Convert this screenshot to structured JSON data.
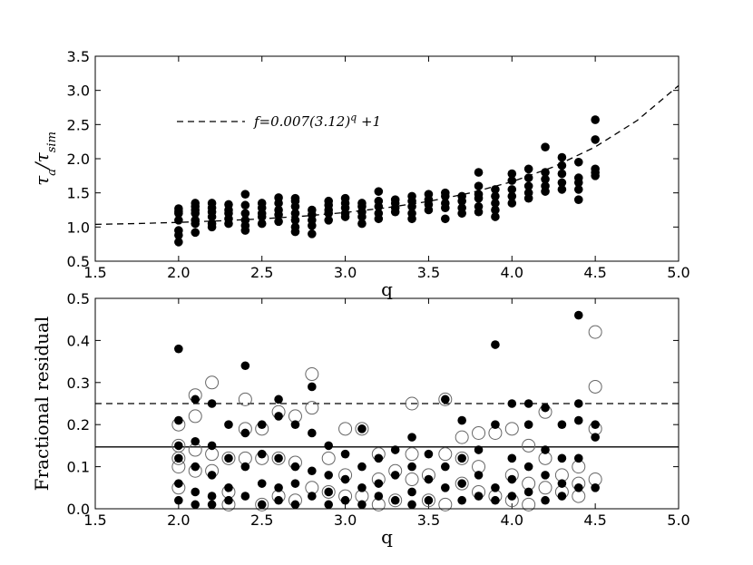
{
  "chart_data": [
    {
      "type": "scatter",
      "xlabel": "q",
      "ylabel_parts": [
        "τ",
        "a",
        "/τ",
        "sim"
      ],
      "xlim": [
        1.5,
        5.0
      ],
      "ylim": [
        0.5,
        3.5
      ],
      "xticks": [
        1.5,
        {
          "value": 2,
          "label": "2.0"
        },
        2.5,
        {
          "value": 3,
          "label": "3.0"
        },
        3.5,
        {
          "value": 4,
          "label": "4.0"
        },
        4.5,
        {
          "value": 5,
          "label": "5.0"
        }
      ],
      "yticks": [
        0.5,
        {
          "value": 1,
          "label": "1.0"
        },
        1.5,
        {
          "value": 2,
          "label": "2.0"
        },
        2.5,
        {
          "value": 3,
          "label": "3.0"
        },
        3.5
      ],
      "legend": "upper left",
      "series": [
        {
          "type": "scatter",
          "color": "#000000",
          "filled": true,
          "x": [
            2.0,
            2.0,
            2.0,
            2.0,
            2.0,
            2.0,
            2.0,
            2.1,
            2.1,
            2.1,
            2.1,
            2.1,
            2.1,
            2.1,
            2.2,
            2.2,
            2.2,
            2.2,
            2.2,
            2.2,
            2.3,
            2.3,
            2.3,
            2.3,
            2.3,
            2.4,
            2.4,
            2.4,
            2.4,
            2.4,
            2.4,
            2.5,
            2.5,
            2.5,
            2.5,
            2.5,
            2.6,
            2.6,
            2.6,
            2.6,
            2.6,
            2.7,
            2.7,
            2.7,
            2.7,
            2.7,
            2.7,
            2.7,
            2.8,
            2.8,
            2.8,
            2.8,
            2.8,
            2.9,
            2.9,
            2.9,
            2.9,
            2.9,
            3.0,
            3.0,
            3.0,
            3.0,
            3.0,
            3.1,
            3.1,
            3.1,
            3.1,
            3.1,
            3.2,
            3.2,
            3.2,
            3.2,
            3.2,
            3.3,
            3.3,
            3.3,
            3.3,
            3.4,
            3.4,
            3.4,
            3.4,
            3.4,
            3.5,
            3.5,
            3.5,
            3.5,
            3.6,
            3.6,
            3.6,
            3.6,
            3.6,
            3.7,
            3.7,
            3.7,
            3.7,
            3.8,
            3.8,
            3.8,
            3.8,
            3.8,
            3.8,
            3.9,
            3.9,
            3.9,
            3.9,
            3.9,
            4.0,
            4.0,
            4.0,
            4.0,
            4.0,
            4.1,
            4.1,
            4.1,
            4.1,
            4.1,
            4.2,
            4.2,
            4.2,
            4.2,
            4.2,
            4.3,
            4.3,
            4.3,
            4.3,
            4.3,
            4.4,
            4.4,
            4.4,
            4.4,
            4.4,
            4.5,
            4.5,
            4.5,
            4.5,
            4.5
          ],
          "values": [
            1.27,
            1.23,
            1.2,
            1.1,
            0.95,
            0.88,
            0.78,
            1.35,
            1.3,
            1.25,
            1.2,
            1.1,
            1.05,
            0.92,
            1.35,
            1.28,
            1.22,
            1.15,
            1.05,
            1.0,
            1.33,
            1.25,
            1.2,
            1.12,
            1.05,
            1.48,
            1.32,
            1.2,
            1.1,
            1.02,
            0.95,
            1.35,
            1.28,
            1.2,
            1.15,
            1.05,
            1.43,
            1.35,
            1.25,
            1.18,
            1.08,
            1.42,
            1.38,
            1.3,
            1.2,
            1.1,
            1.0,
            0.93,
            1.25,
            1.18,
            1.1,
            1.02,
            0.9,
            1.38,
            1.32,
            1.25,
            1.2,
            1.1,
            1.42,
            1.35,
            1.28,
            1.2,
            1.15,
            1.35,
            1.3,
            1.22,
            1.15,
            1.05,
            1.52,
            1.38,
            1.3,
            1.2,
            1.12,
            1.4,
            1.35,
            1.28,
            1.22,
            1.45,
            1.38,
            1.3,
            1.2,
            1.12,
            1.48,
            1.4,
            1.33,
            1.25,
            1.5,
            1.45,
            1.35,
            1.28,
            1.12,
            1.45,
            1.38,
            1.28,
            1.2,
            1.8,
            1.6,
            1.48,
            1.42,
            1.3,
            1.22,
            1.55,
            1.45,
            1.35,
            1.25,
            1.15,
            1.78,
            1.68,
            1.55,
            1.45,
            1.35,
            1.85,
            1.72,
            1.6,
            1.5,
            1.42,
            2.17,
            1.8,
            1.7,
            1.6,
            1.52,
            2.02,
            1.9,
            1.78,
            1.65,
            1.55,
            1.95,
            1.72,
            1.65,
            1.55,
            1.4,
            2.57,
            2.28,
            1.85,
            1.8,
            1.75
          ]
        },
        {
          "type": "line",
          "color": "#000000",
          "dashed": true,
          "legend_parts": [
            "f=0.007(3.12)",
            "q",
            " +1"
          ],
          "x": [
            1.5,
            1.75,
            2.0,
            2.25,
            2.5,
            2.75,
            3.0,
            3.25,
            3.5,
            3.75,
            4.0,
            4.25,
            4.5,
            4.75,
            5.0
          ],
          "values": [
            1.039,
            1.051,
            1.068,
            1.091,
            1.12,
            1.16,
            1.213,
            1.283,
            1.375,
            1.499,
            1.663,
            1.881,
            2.172,
            2.557,
            3.07
          ]
        }
      ]
    },
    {
      "type": "scatter",
      "xlabel": "q",
      "ylabel": "Fractional residual",
      "xlim": [
        1.5,
        5.0
      ],
      "ylim": [
        0.0,
        0.5
      ],
      "xticks": [
        1.5,
        {
          "value": 2,
          "label": "2.0"
        },
        2.5,
        {
          "value": 3,
          "label": "3.0"
        },
        3.5,
        {
          "value": 4,
          "label": "4.0"
        },
        4.5,
        {
          "value": 5,
          "label": "5.0"
        }
      ],
      "yticks": [
        {
          "value": 0,
          "label": "0.0"
        },
        0.1,
        0.2,
        0.3,
        0.4,
        0.5
      ],
      "hlines": [
        {
          "value": 0.25,
          "dashed": true
        },
        {
          "value": 0.147,
          "dashed": false
        }
      ],
      "series": [
        {
          "type": "scatter",
          "color": "#666666",
          "filled": false,
          "x": [
            2.0,
            2.0,
            2.0,
            2.0,
            2.0,
            2.1,
            2.1,
            2.1,
            2.1,
            2.2,
            2.2,
            2.2,
            2.3,
            2.3,
            2.3,
            2.4,
            2.4,
            2.4,
            2.5,
            2.5,
            2.5,
            2.6,
            2.6,
            2.6,
            2.7,
            2.7,
            2.7,
            2.8,
            2.8,
            2.8,
            2.9,
            2.9,
            3.0,
            3.0,
            3.0,
            3.1,
            3.1,
            3.2,
            3.2,
            3.2,
            3.3,
            3.3,
            3.4,
            3.4,
            3.4,
            3.5,
            3.5,
            3.6,
            3.6,
            3.6,
            3.7,
            3.7,
            3.7,
            3.8,
            3.8,
            3.8,
            3.9,
            3.9,
            4.0,
            4.0,
            4.0,
            4.1,
            4.1,
            4.1,
            4.2,
            4.2,
            4.2,
            4.3,
            4.3,
            4.4,
            4.4,
            4.4,
            4.5,
            4.5,
            4.5,
            4.5
          ],
          "values": [
            0.2,
            0.15,
            0.12,
            0.1,
            0.05,
            0.27,
            0.22,
            0.14,
            0.09,
            0.3,
            0.13,
            0.09,
            0.12,
            0.04,
            0.01,
            0.26,
            0.19,
            0.12,
            0.19,
            0.12,
            0.01,
            0.23,
            0.12,
            0.03,
            0.22,
            0.11,
            0.02,
            0.32,
            0.24,
            0.05,
            0.12,
            0.04,
            0.19,
            0.08,
            0.03,
            0.19,
            0.03,
            0.13,
            0.07,
            0.01,
            0.09,
            0.02,
            0.25,
            0.13,
            0.07,
            0.08,
            0.02,
            0.26,
            0.13,
            0.01,
            0.17,
            0.12,
            0.06,
            0.18,
            0.1,
            0.04,
            0.18,
            0.03,
            0.19,
            0.08,
            0.02,
            0.15,
            0.06,
            0.01,
            0.23,
            0.12,
            0.05,
            0.08,
            0.04,
            0.1,
            0.06,
            0.03,
            0.42,
            0.29,
            0.19,
            0.07
          ]
        },
        {
          "type": "scatter",
          "color": "#000000",
          "filled": true,
          "x": [
            2.0,
            2.0,
            2.0,
            2.0,
            2.0,
            2.0,
            2.1,
            2.1,
            2.1,
            2.1,
            2.1,
            2.2,
            2.2,
            2.2,
            2.2,
            2.2,
            2.3,
            2.3,
            2.3,
            2.3,
            2.4,
            2.4,
            2.4,
            2.4,
            2.5,
            2.5,
            2.5,
            2.5,
            2.6,
            2.6,
            2.6,
            2.6,
            2.6,
            2.7,
            2.7,
            2.7,
            2.7,
            2.8,
            2.8,
            2.8,
            2.8,
            2.9,
            2.9,
            2.9,
            2.9,
            3.0,
            3.0,
            3.0,
            3.1,
            3.1,
            3.1,
            3.1,
            3.2,
            3.2,
            3.2,
            3.3,
            3.3,
            3.3,
            3.4,
            3.4,
            3.4,
            3.4,
            3.5,
            3.5,
            3.5,
            3.6,
            3.6,
            3.6,
            3.7,
            3.7,
            3.7,
            3.7,
            3.8,
            3.8,
            3.8,
            3.9,
            3.9,
            3.9,
            3.9,
            4.0,
            4.0,
            4.0,
            4.0,
            4.1,
            4.1,
            4.1,
            4.1,
            4.2,
            4.2,
            4.2,
            4.2,
            4.3,
            4.3,
            4.3,
            4.3,
            4.4,
            4.4,
            4.4,
            4.4,
            4.4,
            4.5,
            4.5,
            4.5
          ],
          "values": [
            0.38,
            0.21,
            0.15,
            0.12,
            0.06,
            0.02,
            0.26,
            0.16,
            0.1,
            0.04,
            0.01,
            0.25,
            0.15,
            0.08,
            0.03,
            0.01,
            0.2,
            0.12,
            0.05,
            0.02,
            0.34,
            0.18,
            0.1,
            0.03,
            0.2,
            0.13,
            0.06,
            0.01,
            0.26,
            0.22,
            0.12,
            0.05,
            0.02,
            0.2,
            0.1,
            0.06,
            0.01,
            0.29,
            0.18,
            0.09,
            0.03,
            0.15,
            0.08,
            0.04,
            0.01,
            0.13,
            0.07,
            0.02,
            0.19,
            0.1,
            0.05,
            0.01,
            0.12,
            0.06,
            0.03,
            0.14,
            0.08,
            0.02,
            0.17,
            0.1,
            0.04,
            0.01,
            0.13,
            0.07,
            0.02,
            0.26,
            0.1,
            0.05,
            0.21,
            0.12,
            0.06,
            0.02,
            0.14,
            0.08,
            0.03,
            0.39,
            0.2,
            0.05,
            0.02,
            0.25,
            0.12,
            0.07,
            0.03,
            0.25,
            0.2,
            0.1,
            0.04,
            0.24,
            0.14,
            0.08,
            0.02,
            0.2,
            0.12,
            0.06,
            0.03,
            0.46,
            0.25,
            0.21,
            0.12,
            0.05,
            0.2,
            0.17,
            0.05
          ]
        }
      ]
    }
  ]
}
